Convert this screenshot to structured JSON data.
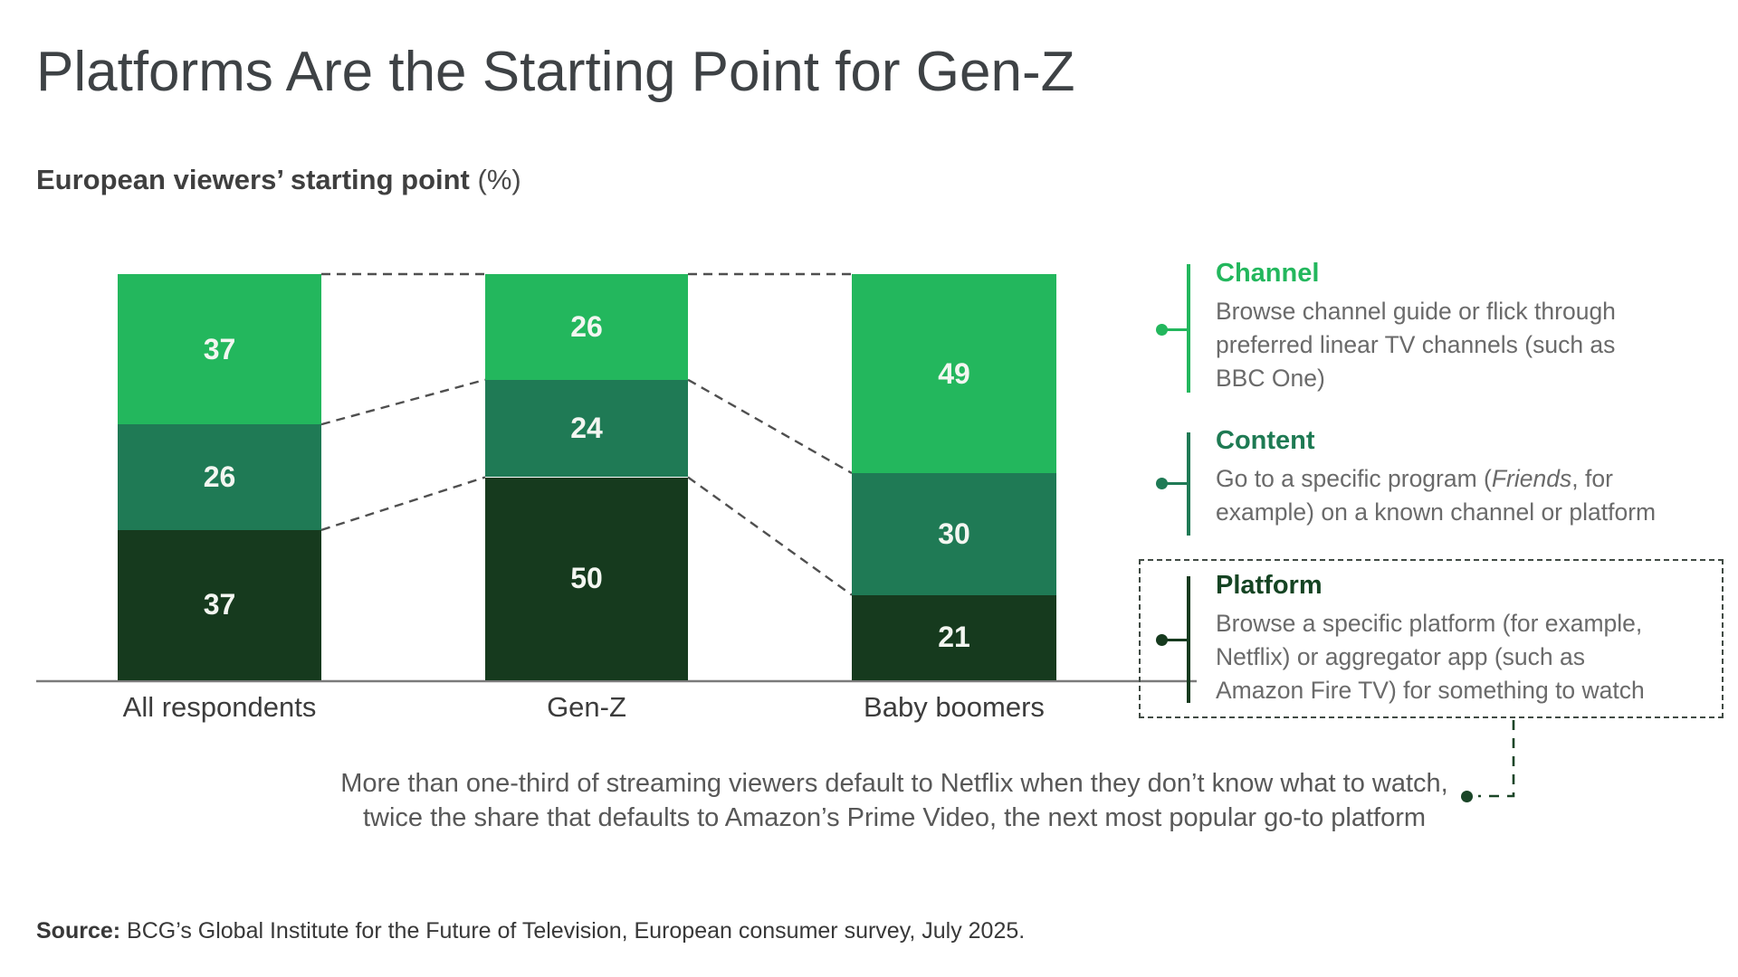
{
  "title": "Platforms Are the Starting Point for Gen-Z",
  "subtitle": {
    "bold": "European viewers’ starting point",
    "unit": " (%)"
  },
  "chart_data": {
    "type": "bar",
    "stacked": true,
    "orientation": "vertical",
    "categories": [
      "All respondents",
      "Gen-Z",
      "Baby boomers"
    ],
    "series": [
      {
        "name": "Channel",
        "values": [
          37,
          26,
          49
        ],
        "color": "#23b75d"
      },
      {
        "name": "Content",
        "values": [
          26,
          24,
          30
        ],
        "color": "#1f7a55"
      },
      {
        "name": "Platform",
        "values": [
          37,
          50,
          21
        ],
        "color": "#163a1e"
      }
    ],
    "ylim": [
      0,
      100
    ],
    "value_labels": true,
    "axes_hidden": true,
    "baseline_color": "#7b7b7b",
    "connector_style": "dashed lines linking stack boundaries between bars",
    "connector_color": "#4f4f4f"
  },
  "legend": {
    "items": [
      {
        "name": "Channel",
        "heading_color": "#23b75d",
        "line_color": "#23b75d",
        "description_parts": [
          {
            "text": "Browse channel guide or flick through\npreferred linear TV channels (such as\nBBC One)"
          }
        ],
        "boxed": false
      },
      {
        "name": "Content",
        "heading_color": "#1e7a53",
        "line_color": "#1f7a55",
        "description_parts": [
          {
            "text": "Go to a specific program ("
          },
          {
            "text": "Friends",
            "italic": true
          },
          {
            "text": ", for\nexample) on a known channel or platform"
          }
        ],
        "boxed": false
      },
      {
        "name": "Platform",
        "heading_color": "#154423",
        "line_color": "#163a1e",
        "description_parts": [
          {
            "text": "Browse a specific platform (for example,\nNetflix) or aggregator app (such as\nAmazon Fire TV) for something to watch"
          }
        ],
        "boxed": true
      }
    ]
  },
  "annotation": {
    "line1": "More than one-third of streaming viewers default to Netflix when they don’t know what to watch,",
    "line2": "twice the share that defaults to Amazon’s Prime Video, the next most popular go-to platform",
    "callout_color": "#1a4527"
  },
  "source": {
    "label": "Source:",
    "text": " BCG’s Global Institute for the Future of Television, European consumer survey, July 2025."
  }
}
